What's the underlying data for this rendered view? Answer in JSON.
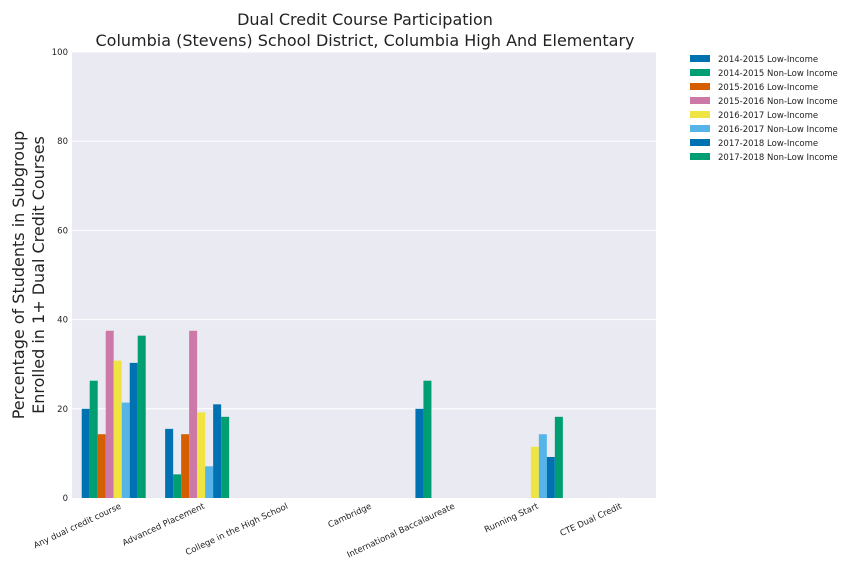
{
  "chart_data": {
    "type": "bar",
    "title": "Dual Credit Course Participation",
    "subtitle": "Columbia (Stevens) School District, Columbia High And Elementary",
    "ylabel_line1": "Percentage of Students in Subgroup",
    "ylabel_line2": "Enrolled in 1+ Dual Credit Courses",
    "xlabel": "",
    "ylim": [
      0,
      100
    ],
    "yticks": [
      0,
      20,
      40,
      60,
      80,
      100
    ],
    "grid": true,
    "legend_position": "outside-top-right",
    "categories": [
      "Any dual credit course",
      "Advanced Placement",
      "College in the High School",
      "Cambridge",
      "International Baccalaureate",
      "Running Start",
      "CTE Dual Credit"
    ],
    "series": [
      {
        "name": "2014-2015 Low-Income",
        "color": "#0072b2",
        "values": [
          20,
          15.5,
          null,
          null,
          20,
          null,
          null
        ]
      },
      {
        "name": "2014-2015 Non-Low Income",
        "color": "#009e73",
        "values": [
          26.3,
          5.3,
          null,
          null,
          26.3,
          null,
          null
        ]
      },
      {
        "name": "2015-2016 Low-Income",
        "color": "#d55e00",
        "values": [
          14.3,
          14.3,
          null,
          null,
          null,
          null,
          null
        ]
      },
      {
        "name": "2015-2016 Non-Low Income",
        "color": "#cc79a7",
        "values": [
          37.5,
          37.5,
          null,
          null,
          null,
          null,
          null
        ]
      },
      {
        "name": "2016-2017 Low-Income",
        "color": "#f0e442",
        "values": [
          30.8,
          19.2,
          null,
          null,
          null,
          11.5,
          null
        ]
      },
      {
        "name": "2016-2017 Non-Low Income",
        "color": "#56b4e9",
        "values": [
          21.4,
          7.1,
          null,
          null,
          null,
          14.3,
          null
        ]
      },
      {
        "name": "2017-2018 Low-Income",
        "color": "#0072b2",
        "values": [
          30.3,
          21.0,
          null,
          null,
          null,
          9.2,
          null
        ]
      },
      {
        "name": "2017-2018 Non-Low Income",
        "color": "#009e73",
        "values": [
          36.4,
          18.2,
          null,
          null,
          null,
          18.2,
          null
        ]
      }
    ]
  }
}
